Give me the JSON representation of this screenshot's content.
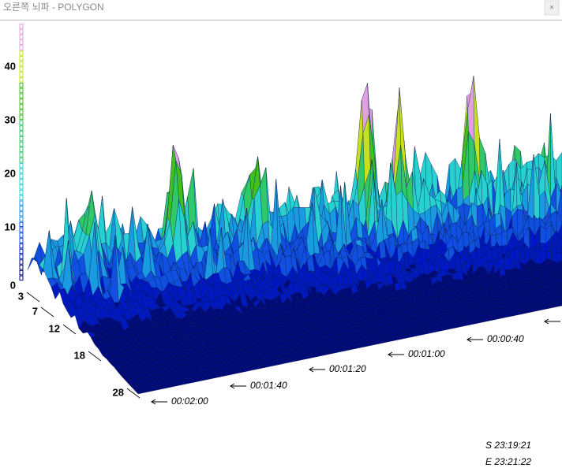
{
  "window": {
    "title": "오른쪽 뇌파 - POLYGON",
    "close": "×"
  },
  "z_axis": {
    "labels": [
      "40",
      "30",
      "20",
      "10",
      "0"
    ]
  },
  "depth_axis": {
    "labels": [
      "3",
      "7",
      "12",
      "18",
      "28"
    ]
  },
  "time_axis": {
    "labels": [
      "00:02:00",
      "00:01:40",
      "00:01:20",
      "00:01:00",
      "00:00:40"
    ]
  },
  "range": {
    "start": "S 23:19:21",
    "end": "E 23:21:22"
  }
}
